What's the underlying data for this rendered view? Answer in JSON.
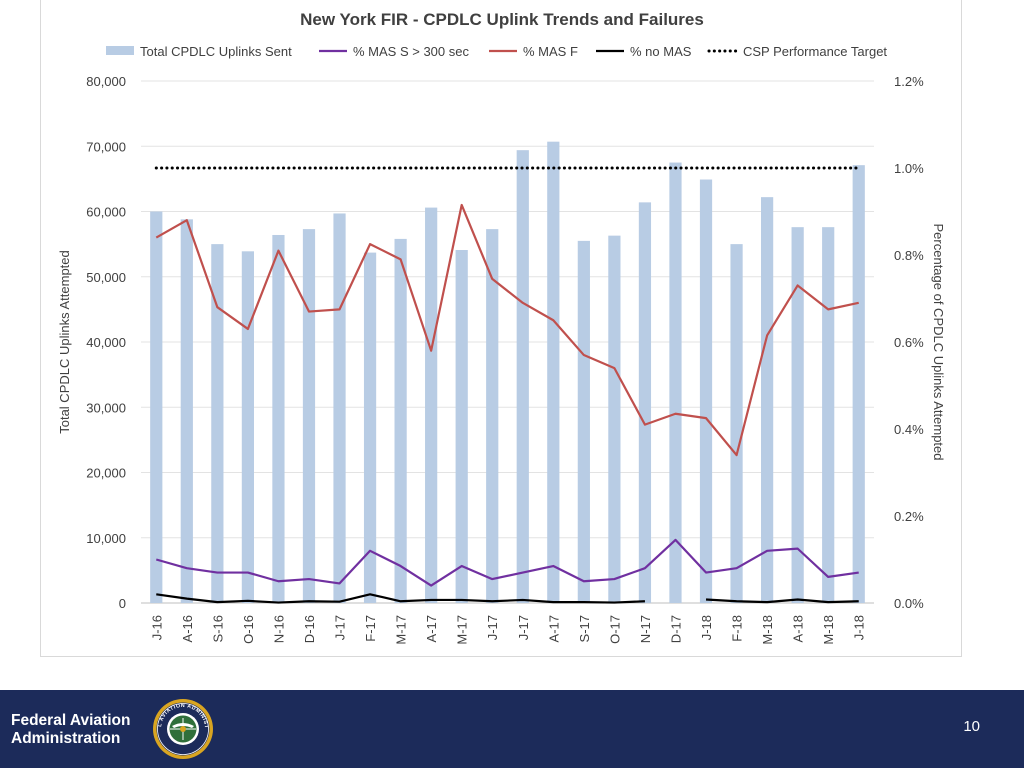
{
  "chart_data": {
    "type": "bar",
    "title": "New York FIR - CPDLC Uplink Trends and Failures",
    "categories": [
      "J-16",
      "A-16",
      "S-16",
      "O-16",
      "N-16",
      "D-16",
      "J-17",
      "F-17",
      "M-17",
      "A-17",
      "M-17",
      "J-17",
      "J-17",
      "A-17",
      "S-17",
      "O-17",
      "N-17",
      "D-17",
      "J-18",
      "F-18",
      "M-18",
      "A-18",
      "M-18",
      "J-18"
    ],
    "ylabel": "Total CPDLC Uplinks Attempted",
    "y2label": "Percentage of CPDLC Uplinks Attempted",
    "ylim": [
      0,
      80000
    ],
    "y2lim": [
      0,
      1.2
    ],
    "yticks": [
      "0",
      "10,000",
      "20,000",
      "30,000",
      "40,000",
      "50,000",
      "60,000",
      "70,000",
      "80,000"
    ],
    "y2ticks": [
      "0.0%",
      "0.2%",
      "0.4%",
      "0.6%",
      "0.8%",
      "1.0%",
      "1.2%"
    ],
    "grid": true,
    "legend_position": "top",
    "series": [
      {
        "name": "Total CPDLC Uplinks Sent",
        "kind": "bar",
        "axis": "left",
        "color": "#b8cce4",
        "values": [
          60000,
          58800,
          55000,
          53900,
          56400,
          57300,
          59700,
          53700,
          55800,
          60600,
          54100,
          57300,
          69400,
          70700,
          55500,
          56300,
          61400,
          67500,
          64900,
          55000,
          62200,
          57600,
          57600,
          67100
        ]
      },
      {
        "name": "% MAS S > 300 sec",
        "kind": "line",
        "axis": "right",
        "color": "#7030a0",
        "values": [
          0.1,
          0.08,
          0.07,
          0.07,
          0.05,
          0.055,
          0.045,
          0.12,
          0.085,
          0.04,
          0.085,
          0.055,
          0.07,
          0.085,
          0.05,
          0.055,
          0.08,
          0.145,
          0.07,
          0.08,
          0.12,
          0.125,
          0.06,
          0.07
        ]
      },
      {
        "name": "% MAS F",
        "kind": "line",
        "axis": "right",
        "color": "#c0504d",
        "values": [
          0.84,
          0.88,
          0.68,
          0.63,
          0.81,
          0.67,
          0.675,
          0.825,
          0.79,
          0.58,
          0.915,
          0.745,
          0.69,
          0.65,
          0.57,
          0.54,
          0.41,
          0.435,
          0.425,
          0.34,
          0.615,
          0.73,
          0.675,
          0.69
        ]
      },
      {
        "name": "% no MAS",
        "kind": "line",
        "axis": "right",
        "color": "#000000",
        "values": [
          0.02,
          0.01,
          0.002,
          0.005,
          0.001,
          0.004,
          0.003,
          0.02,
          0.004,
          0.007,
          0.007,
          0.004,
          0.007,
          0.002,
          0.002,
          0.001,
          0.004,
          null,
          0.008,
          0.004,
          0.002,
          0.008,
          0.002,
          0.004
        ]
      },
      {
        "name": "CSP Performance Target",
        "kind": "dotted",
        "axis": "right",
        "color": "#000000",
        "values": [
          1.0,
          1.0,
          1.0,
          1.0,
          1.0,
          1.0,
          1.0,
          1.0,
          1.0,
          1.0,
          1.0,
          1.0,
          1.0,
          1.0,
          1.0,
          1.0,
          1.0,
          1.0,
          1.0,
          1.0,
          1.0,
          1.0,
          1.0,
          1.0
        ]
      }
    ]
  },
  "footer": {
    "organization": [
      "Federal Aviation",
      "Administration"
    ],
    "page_number": "10",
    "seal_text": "FEDERAL AVIATION ADMINISTRATION"
  }
}
